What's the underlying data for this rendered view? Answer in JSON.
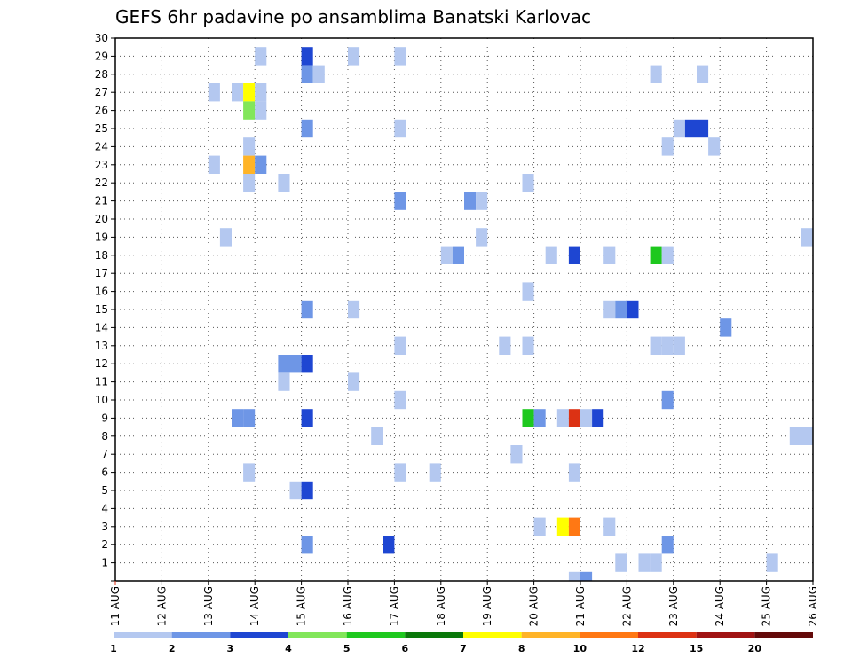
{
  "chart_data": {
    "type": "heatmap",
    "title": "GEFS 6hr padavine po ansamblima Banatski Karlovac",
    "x_ticks": [
      "11 AUG",
      "12 AUG",
      "13 AUG",
      "14 AUG",
      "15 AUG",
      "16 AUG",
      "17 AUG",
      "18 AUG",
      "19 AUG",
      "20 AUG",
      "21 AUG",
      "22 AUG",
      "23 AUG",
      "24 AUG",
      "25 AUG",
      "26 AUG"
    ],
    "y_ticks": [
      "1",
      "2",
      "3",
      "4",
      "5",
      "6",
      "7",
      "8",
      "9",
      "10",
      "11",
      "12",
      "13",
      "14",
      "15",
      "16",
      "17",
      "18",
      "19",
      "20",
      "21",
      "22",
      "23",
      "24",
      "25",
      "26",
      "27",
      "28",
      "29",
      "30"
    ],
    "xlim": [
      0,
      15
    ],
    "ylim": [
      0,
      30
    ],
    "grid": true,
    "cell_width_days": 0.25,
    "legend": {
      "labels": [
        "1",
        "2",
        "3",
        "4",
        "5",
        "6",
        "7",
        "8",
        "10",
        "12",
        "15",
        "20"
      ],
      "colors": [
        "#b4c8f0",
        "#6e96e6",
        "#1e46d2",
        "#82e65a",
        "#1ec81e",
        "#0a780a",
        "#ffff00",
        "#ffb428",
        "#ff7814",
        "#dc3214",
        "#a01414",
        "#640a0a"
      ]
    },
    "cells": [
      {
        "x": 4.0,
        "y": 29,
        "v": 3.5
      },
      {
        "x": 3.0,
        "y": 29,
        "v": 1.5
      },
      {
        "x": 5.0,
        "y": 29,
        "v": 1.5
      },
      {
        "x": 6.0,
        "y": 29,
        "v": 1.5
      },
      {
        "x": 4.0,
        "y": 28,
        "v": 2.5
      },
      {
        "x": 4.25,
        "y": 28,
        "v": 1.5
      },
      {
        "x": 11.5,
        "y": 28,
        "v": 1.5
      },
      {
        "x": 12.5,
        "y": 28,
        "v": 1.5
      },
      {
        "x": 2.0,
        "y": 27,
        "v": 1.5
      },
      {
        "x": 2.5,
        "y": 27,
        "v": 1.5
      },
      {
        "x": 2.75,
        "y": 27,
        "v": 7.5
      },
      {
        "x": 3.0,
        "y": 27,
        "v": 1.5
      },
      {
        "x": 2.75,
        "y": 26,
        "v": 4.5
      },
      {
        "x": 3.0,
        "y": 26,
        "v": 1.5
      },
      {
        "x": 4.0,
        "y": 25,
        "v": 2.5
      },
      {
        "x": 6.0,
        "y": 25,
        "v": 1.5
      },
      {
        "x": 12.0,
        "y": 25,
        "v": 1.5
      },
      {
        "x": 12.25,
        "y": 25,
        "v": 3.5
      },
      {
        "x": 12.5,
        "y": 25,
        "v": 3.5
      },
      {
        "x": 2.75,
        "y": 24,
        "v": 1.5
      },
      {
        "x": 11.75,
        "y": 24,
        "v": 1.5
      },
      {
        "x": 12.75,
        "y": 24,
        "v": 1.5
      },
      {
        "x": 2.0,
        "y": 23,
        "v": 1.5
      },
      {
        "x": 2.75,
        "y": 23,
        "v": 9.0
      },
      {
        "x": 3.0,
        "y": 23,
        "v": 2.5
      },
      {
        "x": 2.75,
        "y": 22,
        "v": 1.5
      },
      {
        "x": 3.5,
        "y": 22,
        "v": 1.5
      },
      {
        "x": 8.75,
        "y": 22,
        "v": 1.5
      },
      {
        "x": 6.0,
        "y": 21,
        "v": 2.5
      },
      {
        "x": 7.5,
        "y": 21,
        "v": 2.5
      },
      {
        "x": 7.75,
        "y": 21,
        "v": 1.5
      },
      {
        "x": 2.25,
        "y": 19,
        "v": 1.5
      },
      {
        "x": 7.75,
        "y": 19,
        "v": 1.5
      },
      {
        "x": 14.75,
        "y": 19,
        "v": 1.5
      },
      {
        "x": 7.0,
        "y": 18,
        "v": 1.5
      },
      {
        "x": 7.25,
        "y": 18,
        "v": 2.5
      },
      {
        "x": 9.25,
        "y": 18,
        "v": 1.5
      },
      {
        "x": 9.75,
        "y": 18,
        "v": 3.5
      },
      {
        "x": 10.5,
        "y": 18,
        "v": 1.5
      },
      {
        "x": 11.5,
        "y": 18,
        "v": 5.5
      },
      {
        "x": 11.75,
        "y": 18,
        "v": 1.5
      },
      {
        "x": 8.75,
        "y": 16,
        "v": 1.5
      },
      {
        "x": 4.0,
        "y": 15,
        "v": 2.5
      },
      {
        "x": 5.0,
        "y": 15,
        "v": 1.5
      },
      {
        "x": 10.5,
        "y": 15,
        "v": 1.5
      },
      {
        "x": 10.75,
        "y": 15,
        "v": 2.5
      },
      {
        "x": 11.0,
        "y": 15,
        "v": 3.5
      },
      {
        "x": 13.0,
        "y": 14,
        "v": 2.5
      },
      {
        "x": 6.0,
        "y": 13,
        "v": 1.5
      },
      {
        "x": 8.25,
        "y": 13,
        "v": 1.5
      },
      {
        "x": 8.75,
        "y": 13,
        "v": 1.5
      },
      {
        "x": 11.5,
        "y": 13,
        "v": 1.5
      },
      {
        "x": 11.75,
        "y": 13,
        "v": 1.5
      },
      {
        "x": 12.0,
        "y": 13,
        "v": 1.5
      },
      {
        "x": 3.5,
        "y": 12,
        "v": 2.5
      },
      {
        "x": 3.75,
        "y": 12,
        "v": 2.5
      },
      {
        "x": 4.0,
        "y": 12,
        "v": 3.5
      },
      {
        "x": 3.5,
        "y": 11,
        "v": 1.5
      },
      {
        "x": 5.0,
        "y": 11,
        "v": 1.5
      },
      {
        "x": 6.0,
        "y": 10,
        "v": 1.5
      },
      {
        "x": 11.75,
        "y": 10,
        "v": 2.5
      },
      {
        "x": 2.5,
        "y": 9,
        "v": 2.5
      },
      {
        "x": 2.75,
        "y": 9,
        "v": 2.5
      },
      {
        "x": 4.0,
        "y": 9,
        "v": 3.5
      },
      {
        "x": 8.75,
        "y": 9,
        "v": 5.5
      },
      {
        "x": 9.0,
        "y": 9,
        "v": 2.5
      },
      {
        "x": 9.5,
        "y": 9,
        "v": 1.5
      },
      {
        "x": 9.75,
        "y": 9,
        "v": 13.0
      },
      {
        "x": 10.0,
        "y": 9,
        "v": 1.5
      },
      {
        "x": 10.25,
        "y": 9,
        "v": 3.5
      },
      {
        "x": 5.5,
        "y": 8,
        "v": 1.5
      },
      {
        "x": 14.5,
        "y": 8,
        "v": 1.5
      },
      {
        "x": 14.75,
        "y": 8,
        "v": 1.5
      },
      {
        "x": 8.5,
        "y": 7,
        "v": 1.5
      },
      {
        "x": 2.75,
        "y": 6,
        "v": 1.5
      },
      {
        "x": 6.0,
        "y": 6,
        "v": 1.5
      },
      {
        "x": 6.75,
        "y": 6,
        "v": 1.5
      },
      {
        "x": 9.75,
        "y": 6,
        "v": 1.5
      },
      {
        "x": 3.75,
        "y": 5,
        "v": 1.5
      },
      {
        "x": 4.0,
        "y": 5,
        "v": 3.5
      },
      {
        "x": 9.0,
        "y": 3,
        "v": 1.5
      },
      {
        "x": 9.5,
        "y": 3,
        "v": 7.5
      },
      {
        "x": 9.75,
        "y": 3,
        "v": 11.0
      },
      {
        "x": 10.5,
        "y": 3,
        "v": 1.5
      },
      {
        "x": 4.0,
        "y": 2,
        "v": 2.5
      },
      {
        "x": 5.75,
        "y": 2,
        "v": 3.5
      },
      {
        "x": 11.75,
        "y": 2,
        "v": 2.5
      },
      {
        "x": 10.75,
        "y": 1,
        "v": 1.5
      },
      {
        "x": 11.25,
        "y": 1,
        "v": 1.5
      },
      {
        "x": 11.5,
        "y": 1,
        "v": 1.5
      },
      {
        "x": 14.0,
        "y": 1,
        "v": 1.5
      },
      {
        "x": 9.75,
        "y": 0,
        "v": 1.5
      },
      {
        "x": 10.0,
        "y": 0,
        "v": 2.5
      }
    ]
  }
}
